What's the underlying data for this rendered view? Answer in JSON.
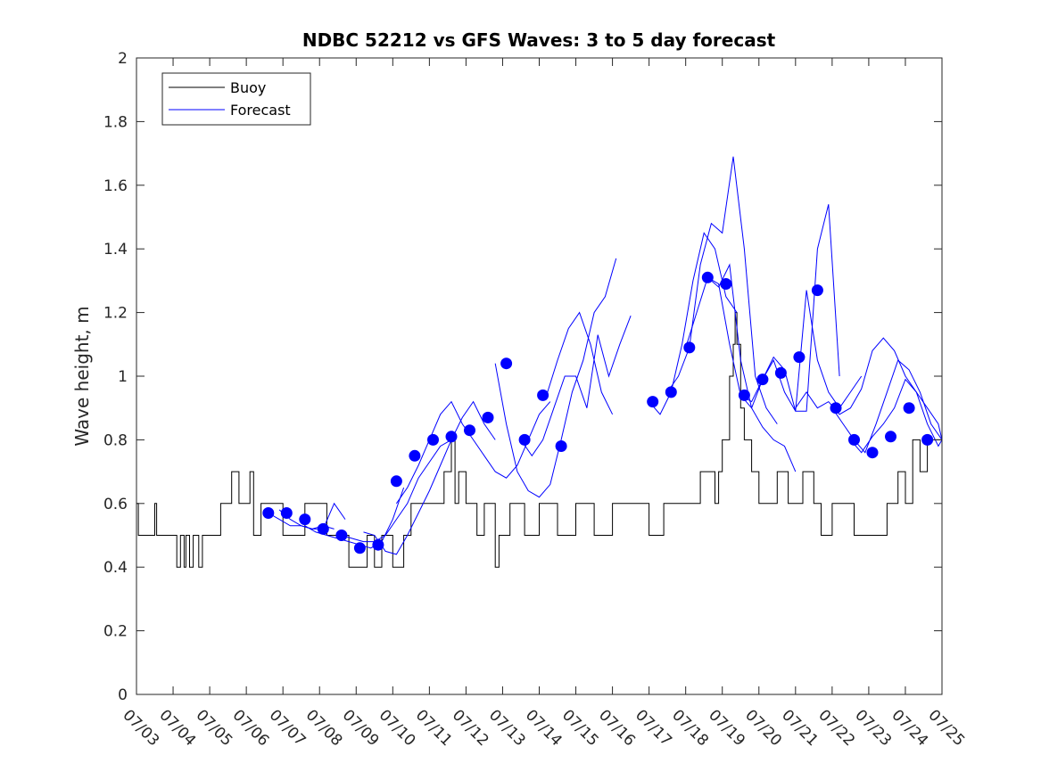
{
  "chart_data": {
    "type": "line",
    "title": "NDBC 52212 vs GFS Waves: 3 to 5 day forecast",
    "xlabel": "",
    "ylabel": "Wave height, m",
    "x_tick_labels": [
      "07/03",
      "07/04",
      "07/05",
      "07/06",
      "07/07",
      "07/08",
      "07/09",
      "07/10",
      "07/11",
      "07/12",
      "07/13",
      "07/14",
      "07/15",
      "07/16",
      "07/17",
      "07/18",
      "07/19",
      "07/20",
      "07/21",
      "07/22",
      "07/23",
      "07/24",
      "07/25"
    ],
    "xlim": [
      0,
      22
    ],
    "ylim": [
      0,
      2
    ],
    "y_ticks": [
      0,
      0.2,
      0.4,
      0.6,
      0.8,
      1,
      1.2,
      1.4,
      1.6,
      1.8,
      2
    ],
    "y_tick_labels": [
      "0",
      "0.2",
      "0.4",
      "0.6",
      "0.8",
      "1",
      "1.2",
      "1.4",
      "1.6",
      "1.8",
      "2"
    ],
    "legend": {
      "position": "top-left",
      "entries": [
        "Buoy",
        "Forecast"
      ]
    },
    "colors": {
      "buoy": "#000000",
      "forecast": "#0000ff",
      "marker": "#0000ff"
    },
    "buoy_series": {
      "name": "Buoy",
      "levels": [
        [
          0,
          0.6
        ],
        [
          0.05,
          0.5
        ],
        [
          0.5,
          0.6
        ],
        [
          0.55,
          0.5
        ],
        [
          1.1,
          0.4
        ],
        [
          1.2,
          0.5
        ],
        [
          1.3,
          0.4
        ],
        [
          1.35,
          0.5
        ],
        [
          1.45,
          0.4
        ],
        [
          1.55,
          0.5
        ],
        [
          1.7,
          0.4
        ],
        [
          1.8,
          0.5
        ],
        [
          2.3,
          0.6
        ],
        [
          2.6,
          0.7
        ],
        [
          2.8,
          0.6
        ],
        [
          3.1,
          0.7
        ],
        [
          3.2,
          0.5
        ],
        [
          3.4,
          0.6
        ],
        [
          4.0,
          0.5
        ],
        [
          4.6,
          0.6
        ],
        [
          5.2,
          0.5
        ],
        [
          5.8,
          0.4
        ],
        [
          6.3,
          0.5
        ],
        [
          6.5,
          0.4
        ],
        [
          6.7,
          0.5
        ],
        [
          7.0,
          0.4
        ],
        [
          7.3,
          0.5
        ],
        [
          7.5,
          0.6
        ],
        [
          8.0,
          0.6
        ],
        [
          8.4,
          0.7
        ],
        [
          8.6,
          0.8
        ],
        [
          8.7,
          0.6
        ],
        [
          8.8,
          0.7
        ],
        [
          9.0,
          0.6
        ],
        [
          9.3,
          0.5
        ],
        [
          9.5,
          0.6
        ],
        [
          9.8,
          0.4
        ],
        [
          9.9,
          0.5
        ],
        [
          10.2,
          0.6
        ],
        [
          10.6,
          0.5
        ],
        [
          11.0,
          0.6
        ],
        [
          11.5,
          0.5
        ],
        [
          12.0,
          0.6
        ],
        [
          12.5,
          0.5
        ],
        [
          13.0,
          0.6
        ],
        [
          14.0,
          0.5
        ],
        [
          14.4,
          0.6
        ],
        [
          15.0,
          0.6
        ],
        [
          15.4,
          0.7
        ],
        [
          15.8,
          0.6
        ],
        [
          15.9,
          0.7
        ],
        [
          16.0,
          0.8
        ],
        [
          16.2,
          1.0
        ],
        [
          16.3,
          1.1
        ],
        [
          16.35,
          1.2
        ],
        [
          16.4,
          1.1
        ],
        [
          16.5,
          0.9
        ],
        [
          16.6,
          0.8
        ],
        [
          16.8,
          0.7
        ],
        [
          17.0,
          0.6
        ],
        [
          17.5,
          0.7
        ],
        [
          17.8,
          0.6
        ],
        [
          18.2,
          0.7
        ],
        [
          18.5,
          0.6
        ],
        [
          18.7,
          0.5
        ],
        [
          19.0,
          0.6
        ],
        [
          19.6,
          0.5
        ],
        [
          20.0,
          0.5
        ],
        [
          20.5,
          0.6
        ],
        [
          20.8,
          0.7
        ],
        [
          21.0,
          0.6
        ],
        [
          21.2,
          0.8
        ],
        [
          21.4,
          0.7
        ],
        [
          21.6,
          0.8
        ],
        [
          22.0,
          0.8
        ]
      ]
    },
    "forecast_series": [
      {
        "x": [
          3.6,
          3.9,
          4.2,
          4.5,
          4.8,
          5.1,
          5.4
        ],
        "y": [
          0.57,
          0.55,
          0.53,
          0.53,
          0.52,
          0.53,
          0.52
        ]
      },
      {
        "x": [
          3.9,
          4.2,
          4.5,
          4.8,
          5.1,
          5.4,
          5.7
        ],
        "y": [
          0.58,
          0.55,
          0.53,
          0.52,
          0.52,
          0.6,
          0.55
        ]
      },
      {
        "x": [
          4.6,
          4.9,
          5.2,
          5.5,
          5.8,
          6.1,
          6.4,
          6.7,
          7.0,
          7.3
        ],
        "y": [
          0.53,
          0.51,
          0.5,
          0.49,
          0.48,
          0.47,
          0.46,
          0.48,
          0.55,
          0.65
        ]
      },
      {
        "x": [
          5.6,
          5.9,
          6.2,
          6.5,
          6.8,
          7.1,
          7.4,
          7.7,
          8.0,
          8.3,
          8.6
        ],
        "y": [
          0.5,
          0.49,
          0.48,
          0.48,
          0.5,
          0.55,
          0.6,
          0.68,
          0.73,
          0.78,
          0.8
        ]
      },
      {
        "x": [
          6.2,
          6.5,
          6.8,
          7.1,
          7.4,
          7.7,
          8.0,
          8.3,
          8.6,
          8.9,
          9.2,
          9.5,
          9.8
        ],
        "y": [
          0.51,
          0.5,
          0.45,
          0.44,
          0.5,
          0.57,
          0.64,
          0.72,
          0.8,
          0.87,
          0.92,
          0.85,
          0.8
        ]
      },
      {
        "x": [
          7.1,
          7.4,
          7.7,
          8.0,
          8.3,
          8.6,
          8.9,
          9.2,
          9.5,
          9.8,
          10.1,
          10.4,
          10.7,
          11.0,
          11.3
        ],
        "y": [
          0.6,
          0.65,
          0.72,
          0.8,
          0.88,
          0.92,
          0.85,
          0.8,
          0.75,
          0.7,
          0.68,
          0.72,
          0.8,
          0.88,
          0.92
        ]
      },
      {
        "x": [
          9.8,
          10.1,
          10.4,
          10.7,
          11.0,
          11.3,
          11.6,
          11.9,
          12.2,
          12.5,
          12.8,
          13.1
        ],
        "y": [
          1.04,
          0.85,
          0.7,
          0.64,
          0.62,
          0.66,
          0.8,
          0.95,
          1.05,
          1.2,
          1.25,
          1.37
        ]
      },
      {
        "x": [
          10.5,
          10.8,
          11.1,
          11.4,
          11.7,
          12.0,
          12.3,
          12.6,
          12.9,
          13.2,
          13.5
        ],
        "y": [
          0.8,
          0.75,
          0.8,
          0.9,
          1.0,
          1.0,
          0.9,
          1.13,
          1.0,
          1.1,
          1.19
        ]
      },
      {
        "x": [
          11.2,
          11.5,
          11.8,
          12.1,
          12.4,
          12.7,
          13.0
        ],
        "y": [
          0.94,
          1.05,
          1.15,
          1.2,
          1.1,
          0.95,
          0.88
        ]
      },
      {
        "x": [
          14.0,
          14.3,
          14.6,
          14.9,
          15.2,
          15.5,
          15.8,
          16.1,
          16.4
        ],
        "y": [
          0.92,
          0.88,
          0.95,
          1.1,
          1.3,
          1.45,
          1.4,
          1.25,
          1.2
        ]
      },
      {
        "x": [
          14.5,
          14.8,
          15.1,
          15.4,
          15.7,
          16.0,
          16.3,
          16.6,
          16.9,
          17.2,
          17.5
        ],
        "y": [
          0.95,
          1.0,
          1.09,
          1.35,
          1.48,
          1.45,
          1.69,
          1.4,
          1.0,
          0.9,
          0.85
        ]
      },
      {
        "x": [
          15.0,
          15.3,
          15.6,
          15.9,
          16.2,
          16.5,
          16.8,
          17.1,
          17.4,
          17.7,
          18.0
        ],
        "y": [
          1.09,
          1.2,
          1.31,
          1.28,
          1.35,
          1.05,
          0.9,
          0.84,
          0.8,
          0.78,
          0.7
        ]
      },
      {
        "x": [
          15.6,
          15.9,
          16.2,
          16.5,
          16.8,
          17.1,
          17.4,
          17.7,
          18.0,
          18.3,
          18.6,
          18.9,
          19.2
        ],
        "y": [
          1.31,
          1.29,
          1.1,
          0.94,
          0.9,
          0.99,
          1.05,
          0.95,
          0.89,
          0.89,
          1.4,
          1.54,
          1.0
        ]
      },
      {
        "x": [
          16.5,
          16.8,
          17.1,
          17.4,
          17.7,
          18.0,
          18.3,
          18.6,
          18.9,
          19.2,
          19.5,
          19.8
        ],
        "y": [
          0.94,
          0.92,
          0.99,
          1.06,
          1.02,
          0.89,
          1.27,
          1.05,
          0.95,
          0.9,
          0.95,
          1.0
        ]
      },
      {
        "x": [
          18.0,
          18.3,
          18.6,
          18.9,
          19.2,
          19.5,
          19.8,
          20.1,
          20.4,
          20.7,
          21.0,
          21.3,
          21.6,
          21.9,
          22.0
        ],
        "y": [
          0.9,
          0.95,
          0.9,
          0.92,
          0.88,
          0.9,
          0.96,
          1.08,
          1.12,
          1.08,
          1.0,
          0.95,
          0.9,
          0.85,
          0.8
        ]
      },
      {
        "x": [
          19.0,
          19.3,
          19.6,
          19.9,
          20.2,
          20.5,
          20.8,
          21.1,
          21.4,
          21.7,
          22.0
        ],
        "y": [
          0.9,
          0.85,
          0.8,
          0.76,
          0.85,
          0.95,
          1.05,
          1.02,
          0.95,
          0.85,
          0.8
        ]
      },
      {
        "x": [
          19.5,
          19.8,
          20.1,
          20.4,
          20.7,
          21.0,
          21.3,
          21.6,
          21.9,
          22.0
        ],
        "y": [
          0.8,
          0.76,
          0.81,
          0.85,
          0.9,
          0.99,
          0.95,
          0.85,
          0.78,
          0.8
        ]
      }
    ],
    "markers": {
      "x": [
        3.6,
        4.1,
        4.6,
        5.1,
        5.6,
        6.1,
        6.6,
        7.1,
        7.6,
        8.1,
        8.6,
        9.1,
        9.6,
        10.1,
        10.6,
        11.1,
        11.6,
        14.1,
        14.6,
        15.1,
        15.6,
        16.1,
        16.6,
        17.1,
        17.6,
        18.1,
        18.6,
        19.1,
        19.6,
        20.1,
        20.6,
        21.1,
        21.6
      ],
      "y": [
        0.57,
        0.57,
        0.55,
        0.52,
        0.5,
        0.46,
        0.47,
        0.67,
        0.75,
        0.8,
        0.81,
        0.83,
        0.87,
        1.04,
        0.8,
        0.94,
        0.78,
        0.92,
        0.95,
        1.09,
        1.31,
        1.29,
        0.94,
        0.99,
        1.01,
        1.06,
        1.27,
        0.9,
        0.8,
        0.76,
        0.81,
        0.9,
        0.8
      ]
    }
  }
}
